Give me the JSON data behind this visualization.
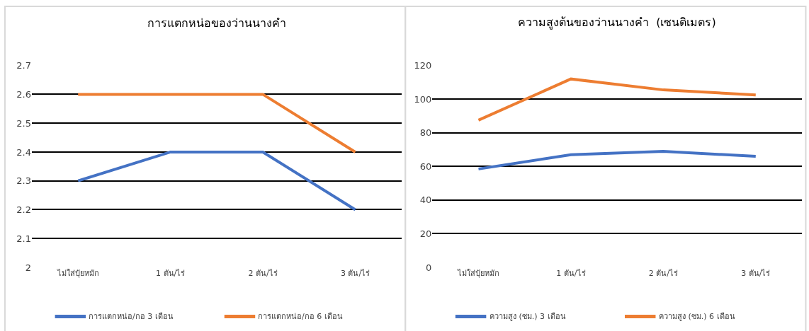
{
  "chart_data": [
    {
      "type": "line",
      "title": "การแตกหน่อของว่านนางคำ",
      "categories": [
        "ไม่ใส่ปุ๋ยหมัก",
        "1 ตัน/ไร่",
        "2 ตัน/ไร่",
        "3 ตัน/ไร่"
      ],
      "series": [
        {
          "name": "การแตกหน่อ/กอ 3 เดือน",
          "color": "#4472c4",
          "values": [
            2.3,
            2.4,
            2.4,
            2.2
          ]
        },
        {
          "name": "การแตกหน่อ/กอ 6 เดือน",
          "color": "#ed7d31",
          "values": [
            2.6,
            2.6,
            2.6,
            2.4
          ]
        }
      ],
      "ylim": [
        2,
        2.7
      ],
      "yticks": [
        2,
        2.1,
        2.2,
        2.3,
        2.4,
        2.5,
        2.6,
        2.7
      ],
      "grid": "y",
      "legend": "bottom",
      "marker": "none",
      "line_style": "solid"
    },
    {
      "type": "line",
      "title": "ความสูงต้นของว่านนางคำ  (เซนติเมตร)",
      "categories": [
        "ไม่ใส่ปุ๋ยหมัก",
        "1 ตัน/ไร่",
        "2 ตัน/ไร่",
        "3 ตัน/ไร่"
      ],
      "series": [
        {
          "name": "ความสูง (ซม.) 3 เดือน",
          "color": "#4472c4",
          "values": [
            58.5,
            67,
            69,
            66
          ]
        },
        {
          "name": "ความสูง (ซม.) 6 เดือน",
          "color": "#ed7d31",
          "values": [
            87.5,
            112,
            105.5,
            102.5
          ]
        }
      ],
      "ylim": [
        0,
        120
      ],
      "yticks": [
        0,
        20,
        40,
        60,
        80,
        100,
        120
      ],
      "grid": "y",
      "legend": "bottom",
      "marker": "none",
      "line_style": "solid"
    }
  ]
}
